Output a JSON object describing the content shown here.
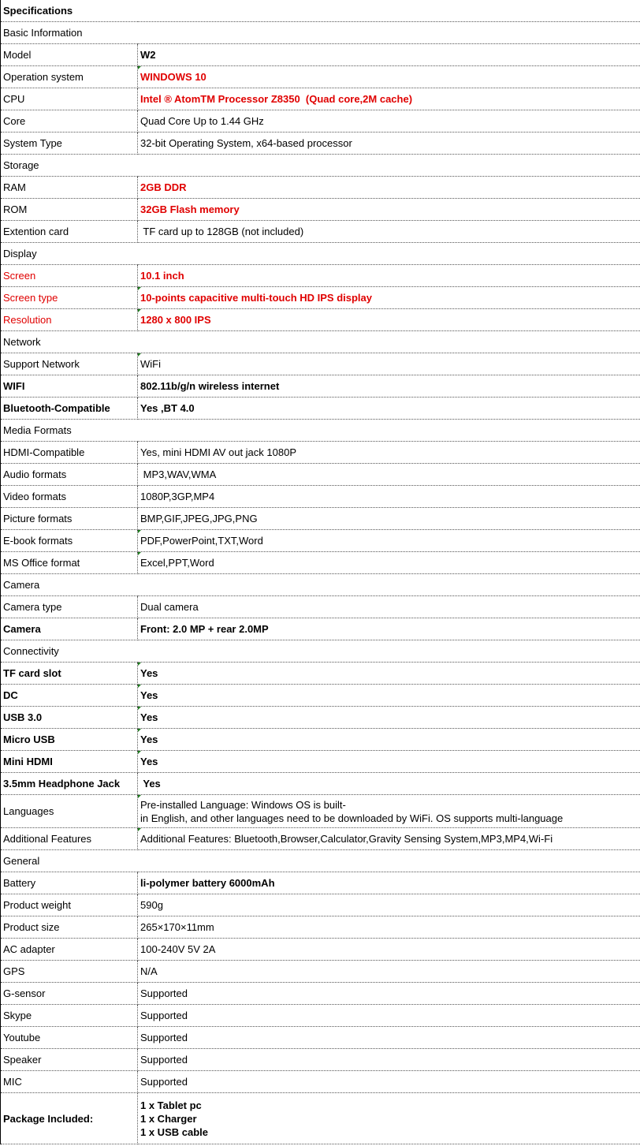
{
  "title": "Specifications",
  "colors": {
    "highlight": "#e00000",
    "border": "#555555"
  },
  "rows": [
    {
      "section": "Basic Information"
    },
    {
      "label": "Model",
      "value": "W2",
      "vs": "b"
    },
    {
      "label": "Operation system",
      "value": "WINDOWS 10",
      "vs": "rb",
      "mark": true
    },
    {
      "label": "CPU",
      "value": "Intel ® AtomTM Processor Z8350  (Quad core,2M cache)",
      "vs": "rb"
    },
    {
      "label": "Core",
      "value": "Quad Core Up to 1.44 GHz"
    },
    {
      "label": "System Type",
      "value": "32-bit Operating System, x64-based processor"
    },
    {
      "section": "Storage"
    },
    {
      "label": "RAM",
      "value": "2GB DDR",
      "vs": "rb"
    },
    {
      "label": "ROM",
      "value": "32GB Flash memory",
      "vs": "rb"
    },
    {
      "label": "Extention card",
      "value": " TF card up to 128GB (not included)"
    },
    {
      "section": "Display"
    },
    {
      "label": "Screen",
      "ls": "r",
      "value": "10.1 inch",
      "vs": "rb"
    },
    {
      "label": "Screen type",
      "ls": "r",
      "value": "10-points capacitive multi-touch HD IPS display",
      "vs": "rb",
      "mark": true
    },
    {
      "label": "Resolution",
      "ls": "r",
      "value": "1280 x 800 IPS",
      "vs": "rb",
      "mark": true
    },
    {
      "section": "Network"
    },
    {
      "label": "Support Network",
      "value": "WiFi",
      "mark": true
    },
    {
      "label": "WIFI",
      "ls": "b",
      "value": "802.11b/g/n wireless internet",
      "vs": "b"
    },
    {
      "label": "Bluetooth-Compatible",
      "ls": "b",
      "value": "Yes ,BT 4.0",
      "vs": "b"
    },
    {
      "section": "Media Formats"
    },
    {
      "label": "HDMI-Compatible",
      "value": "Yes, mini HDMI AV out jack 1080P"
    },
    {
      "label": "Audio formats",
      "value": " MP3,WAV,WMA"
    },
    {
      "label": "Video formats",
      "value": "1080P,3GP,MP4"
    },
    {
      "label": "Picture formats",
      "value": "BMP,GIF,JPEG,JPG,PNG"
    },
    {
      "label": "E-book formats",
      "value": "PDF,PowerPoint,TXT,Word",
      "mark": true
    },
    {
      "label": "MS Office format",
      "value": "Excel,PPT,Word",
      "mark": true
    },
    {
      "section": "Camera"
    },
    {
      "label": "Camera type",
      "value": "Dual camera"
    },
    {
      "label": "Camera",
      "ls": "b",
      "value": "Front: 2.0 MP + rear 2.0MP",
      "vs": "b"
    },
    {
      "section": "Connectivity"
    },
    {
      "label": "TF card slot",
      "ls": "b",
      "value": "Yes",
      "vs": "b",
      "mark": true
    },
    {
      "label": "DC",
      "ls": "b",
      "value": "Yes",
      "vs": "b",
      "mark": true
    },
    {
      "label": "USB 3.0",
      "ls": "b",
      "value": "Yes",
      "vs": "b",
      "mark": true
    },
    {
      "label": "Micro USB",
      "ls": "b",
      "value": "Yes",
      "vs": "b",
      "mark": true
    },
    {
      "label": "Mini HDMI",
      "ls": "b",
      "value": "Yes",
      "vs": "b",
      "mark": true
    },
    {
      "label": "3.5mm Headphone Jack",
      "ls": "b",
      "value": " Yes",
      "vs": "b"
    },
    {
      "label": "Languages",
      "value": [
        "Pre-installed Language: Windows OS is built-",
        "in English, and other languages need to be downloaded by WiFi. OS supports multi-language"
      ],
      "tall": true,
      "mark": true
    },
    {
      "label": "Additional Features",
      "value": "Additional Features: Bluetooth,Browser,Calculator,Gravity Sensing System,MP3,MP4,Wi-Fi",
      "mark": true
    },
    {
      "section": "General"
    },
    {
      "label": "Battery",
      "value": "li-polymer battery 6000mAh",
      "vs": "b"
    },
    {
      "label": "Product weight",
      "value": "590g"
    },
    {
      "label": "Product size",
      "value": "265×170×11mm"
    },
    {
      "label": "AC adapter",
      "value": "100-240V 5V 2A"
    },
    {
      "label": "GPS",
      "value": "N/A"
    },
    {
      "label": "G-sensor",
      "value": "Supported"
    },
    {
      "label": "Skype",
      "value": "Supported"
    },
    {
      "label": "Youtube",
      "value": "Supported"
    },
    {
      "label": "Speaker",
      "value": "Supported"
    },
    {
      "label": "MIC",
      "value": "Supported"
    },
    {
      "label": "Package Included:",
      "ls": "b",
      "value": [
        "1 x Tablet pc",
        "1 x Charger",
        "1 x USB cable"
      ],
      "vs": "b",
      "pkg": true
    }
  ]
}
